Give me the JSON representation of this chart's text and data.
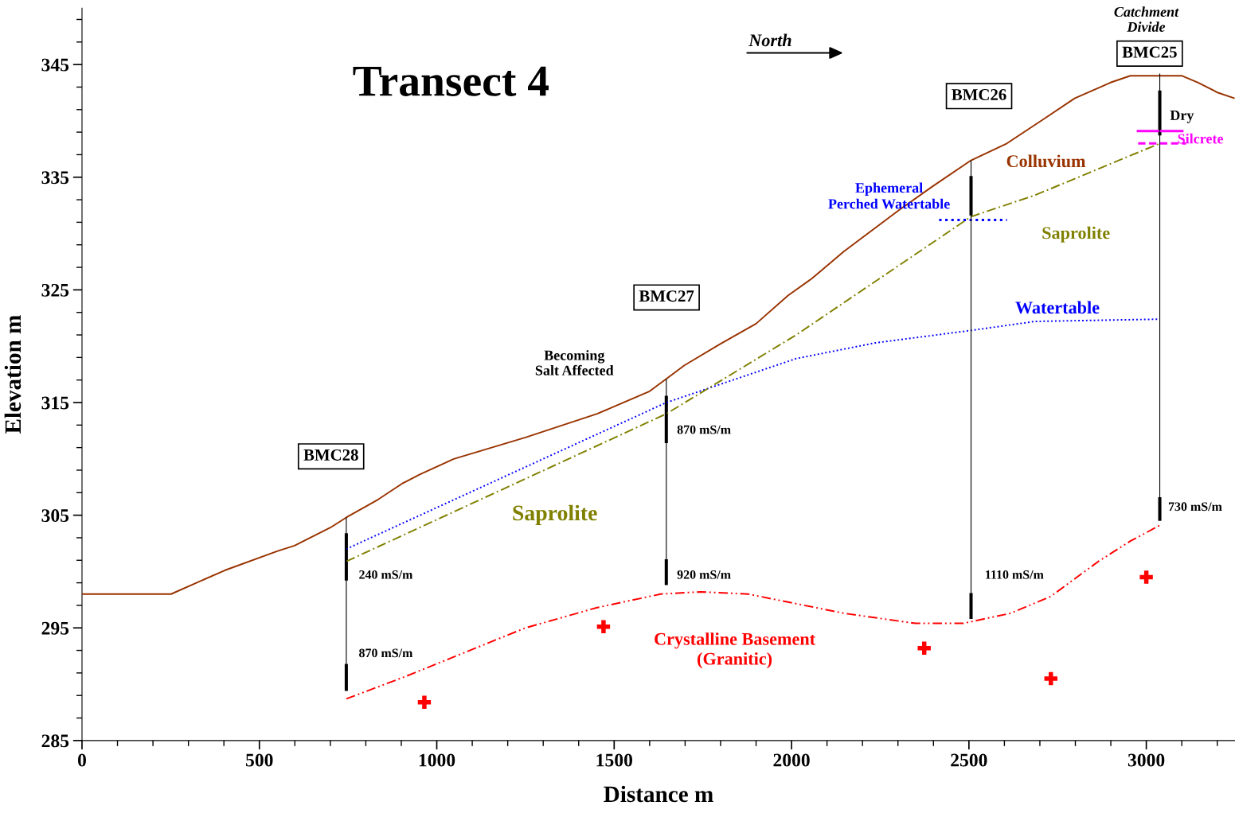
{
  "chart_data": {
    "type": "line",
    "title": "Transect 4",
    "xlabel": "Distance m",
    "ylabel": "Elevation m",
    "xlim": [
      0,
      3250
    ],
    "ylim": [
      285,
      350
    ],
    "xticks": [
      0,
      {
        "value": 100,
        "label": null
      },
      {
        "value": 200,
        "label": null
      },
      {
        "value": 300,
        "label": null
      },
      {
        "value": 400,
        "label": null
      },
      500,
      {
        "value": 600,
        "label": null
      },
      {
        "value": 700,
        "label": null
      },
      {
        "value": 800,
        "label": null
      },
      {
        "value": 900,
        "label": null
      },
      1000,
      {
        "value": 1100,
        "label": null
      },
      {
        "value": 1200,
        "label": null
      },
      {
        "value": 1300,
        "label": null
      },
      {
        "value": 1400,
        "label": null
      },
      1500,
      {
        "value": 1600,
        "label": null
      },
      {
        "value": 1700,
        "label": null
      },
      {
        "value": 1800,
        "label": null
      },
      {
        "value": 1900,
        "label": null
      },
      2000,
      {
        "value": 2100,
        "label": null
      },
      {
        "value": 2200,
        "label": null
      },
      {
        "value": 2300,
        "label": null
      },
      {
        "value": 2400,
        "label": null
      },
      2500,
      {
        "value": 2600,
        "label": null
      },
      {
        "value": 2700,
        "label": null
      },
      {
        "value": 2800,
        "label": null
      },
      {
        "value": 2900,
        "label": null
      },
      3000,
      {
        "value": 3100,
        "label": null
      },
      {
        "value": 3200,
        "label": null
      }
    ],
    "yticks": [
      285,
      {
        "value": 287,
        "label": null
      },
      {
        "value": 289,
        "label": null
      },
      {
        "value": 291,
        "label": null
      },
      {
        "value": 293,
        "label": null
      },
      295,
      {
        "value": 297,
        "label": null
      },
      {
        "value": 299,
        "label": null
      },
      {
        "value": 301,
        "label": null
      },
      {
        "value": 303,
        "label": null
      },
      305,
      {
        "value": 307,
        "label": null
      },
      {
        "value": 309,
        "label": null
      },
      {
        "value": 311,
        "label": null
      },
      {
        "value": 313,
        "label": null
      },
      315,
      {
        "value": 317,
        "label": null
      },
      {
        "value": 319,
        "label": null
      },
      {
        "value": 321,
        "label": null
      },
      {
        "value": 323,
        "label": null
      },
      325,
      {
        "value": 327,
        "label": null
      },
      {
        "value": 329,
        "label": null
      },
      {
        "value": 331,
        "label": null
      },
      {
        "value": 333,
        "label": null
      },
      335,
      {
        "value": 337,
        "label": null
      },
      {
        "value": 339,
        "label": null
      },
      {
        "value": 341,
        "label": null
      },
      {
        "value": 343,
        "label": null
      },
      345,
      {
        "value": 347,
        "label": null
      },
      {
        "value": 349,
        "label": null
      }
    ],
    "grid": false,
    "series": [
      {
        "name": "Colluvium",
        "color": "#993300",
        "line_style": "solid",
        "x": [
          0,
          251,
          402,
          550,
          599,
          700,
          745,
          835,
          902,
          951,
          1048,
          1250,
          1452,
          1600,
          1647,
          1698,
          1799,
          1900,
          1990,
          2057,
          2147,
          2215,
          2304,
          2398,
          2506,
          2607,
          2708,
          2798,
          2899,
          2955,
          3101,
          3146,
          3202,
          3249
        ],
        "values": [
          298.0,
          298.0,
          300.1,
          301.8,
          302.3,
          303.9,
          304.8,
          306.4,
          307.8,
          308.6,
          310.0,
          311.9,
          314.0,
          316.0,
          317.1,
          318.3,
          320.2,
          322.0,
          324.5,
          326.0,
          328.4,
          330.0,
          332.1,
          334.2,
          336.5,
          338.0,
          340.1,
          342.0,
          343.4,
          344.0,
          344.0,
          343.4,
          342.5,
          342.0
        ]
      },
      {
        "name": "Watertable",
        "color": "#0000ff",
        "line_style": "dotted",
        "x": [
          745,
          1647,
          2013,
          2237,
          2506,
          2686,
          3038
        ],
        "values": [
          302.0,
          315.0,
          318.9,
          320.3,
          321.4,
          322.2,
          322.4
        ]
      },
      {
        "name": "Saprolite",
        "color": "#808000",
        "line_style": "dashdot",
        "x": [
          745,
          1647,
          2013,
          2506,
          2686,
          3038
        ],
        "values": [
          300.9,
          314.0,
          321.0,
          331.5,
          333.4,
          338.0
        ]
      },
      {
        "name": "Crystalline Basement\n(Granitic)",
        "color": "#ff0000",
        "line_style": "dashdotdot",
        "x": [
          745,
          913,
          1250,
          1452,
          1631,
          1743,
          1878,
          2147,
          2349,
          2484,
          2618,
          2731,
          2865,
          2955,
          3038
        ],
        "values": [
          288.7,
          290.7,
          295.0,
          296.8,
          298.0,
          298.2,
          298.0,
          296.3,
          295.4,
          295.4,
          296.3,
          297.8,
          300.9,
          302.7,
          304.1
        ]
      },
      {
        "name": "Ephemeral\nPerched Watertable",
        "color": "#0000ff",
        "line_style": "dotted",
        "x": [
          2416,
          2607
        ],
        "values": [
          331.2,
          331.2
        ]
      },
      {
        "name": "Silcrete",
        "color": "#ff00ff",
        "line_style": "solid",
        "x": [
          2973,
          3105
        ],
        "values": [
          339.1,
          339.1
        ]
      },
      {
        "color": "#ff00ff",
        "line_style": "dashed",
        "x": [
          2977,
          3112
        ],
        "values": [
          338.0,
          338.0
        ]
      },
      {
        "color": "#000000",
        "line_style": "solid",
        "x": [
          745,
          745
        ],
        "values": [
          304.8,
          291.8
        ]
      },
      {
        "color": "#000000",
        "line_style": "solid",
        "x": [
          1647,
          1647
        ],
        "values": [
          317.1,
          301.1
        ]
      },
      {
        "color": "#000000",
        "line_style": "solid",
        "x": [
          2506,
          2506
        ],
        "values": [
          336.5,
          298.1
        ]
      },
      {
        "color": "#000000",
        "line_style": "solid",
        "x": [
          3038,
          3038
        ],
        "values": [
          344.2,
          306.6
        ]
      },
      {
        "type": "bar",
        "color": "#000000",
        "x": [
          745,
          1647,
          2506,
          3038
        ],
        "base": [
          299.2,
          311.4,
          331.6,
          338.7
        ],
        "values": [
          4.2,
          4.2,
          3.5,
          4.0
        ]
      },
      {
        "type": "bar",
        "color": "#000000",
        "x": [
          745,
          1647,
          2506,
          3038
        ],
        "base": [
          289.4,
          298.8,
          295.8,
          304.5
        ],
        "values": [
          2.4,
          2.3,
          2.3,
          2.1
        ]
      },
      {
        "type": "scatter",
        "color": "#ff0000",
        "marker": "cross",
        "x": [
          965,
          1470,
          2374,
          2731,
          3000
        ],
        "values": [
          288.4,
          295.1,
          293.2,
          290.5,
          299.5
        ]
      }
    ],
    "annotations": [
      "North",
      "Catchment\nDivide",
      "BMC25",
      "BMC26",
      "BMC27",
      "BMC28",
      "Dry",
      "Becoming\nSalt Affected",
      "870 mS/m",
      "Saprolite",
      "240 mS/m",
      "920 mS/m",
      "1110 mS/m",
      "730 mS/m",
      "870 mS/m"
    ]
  }
}
